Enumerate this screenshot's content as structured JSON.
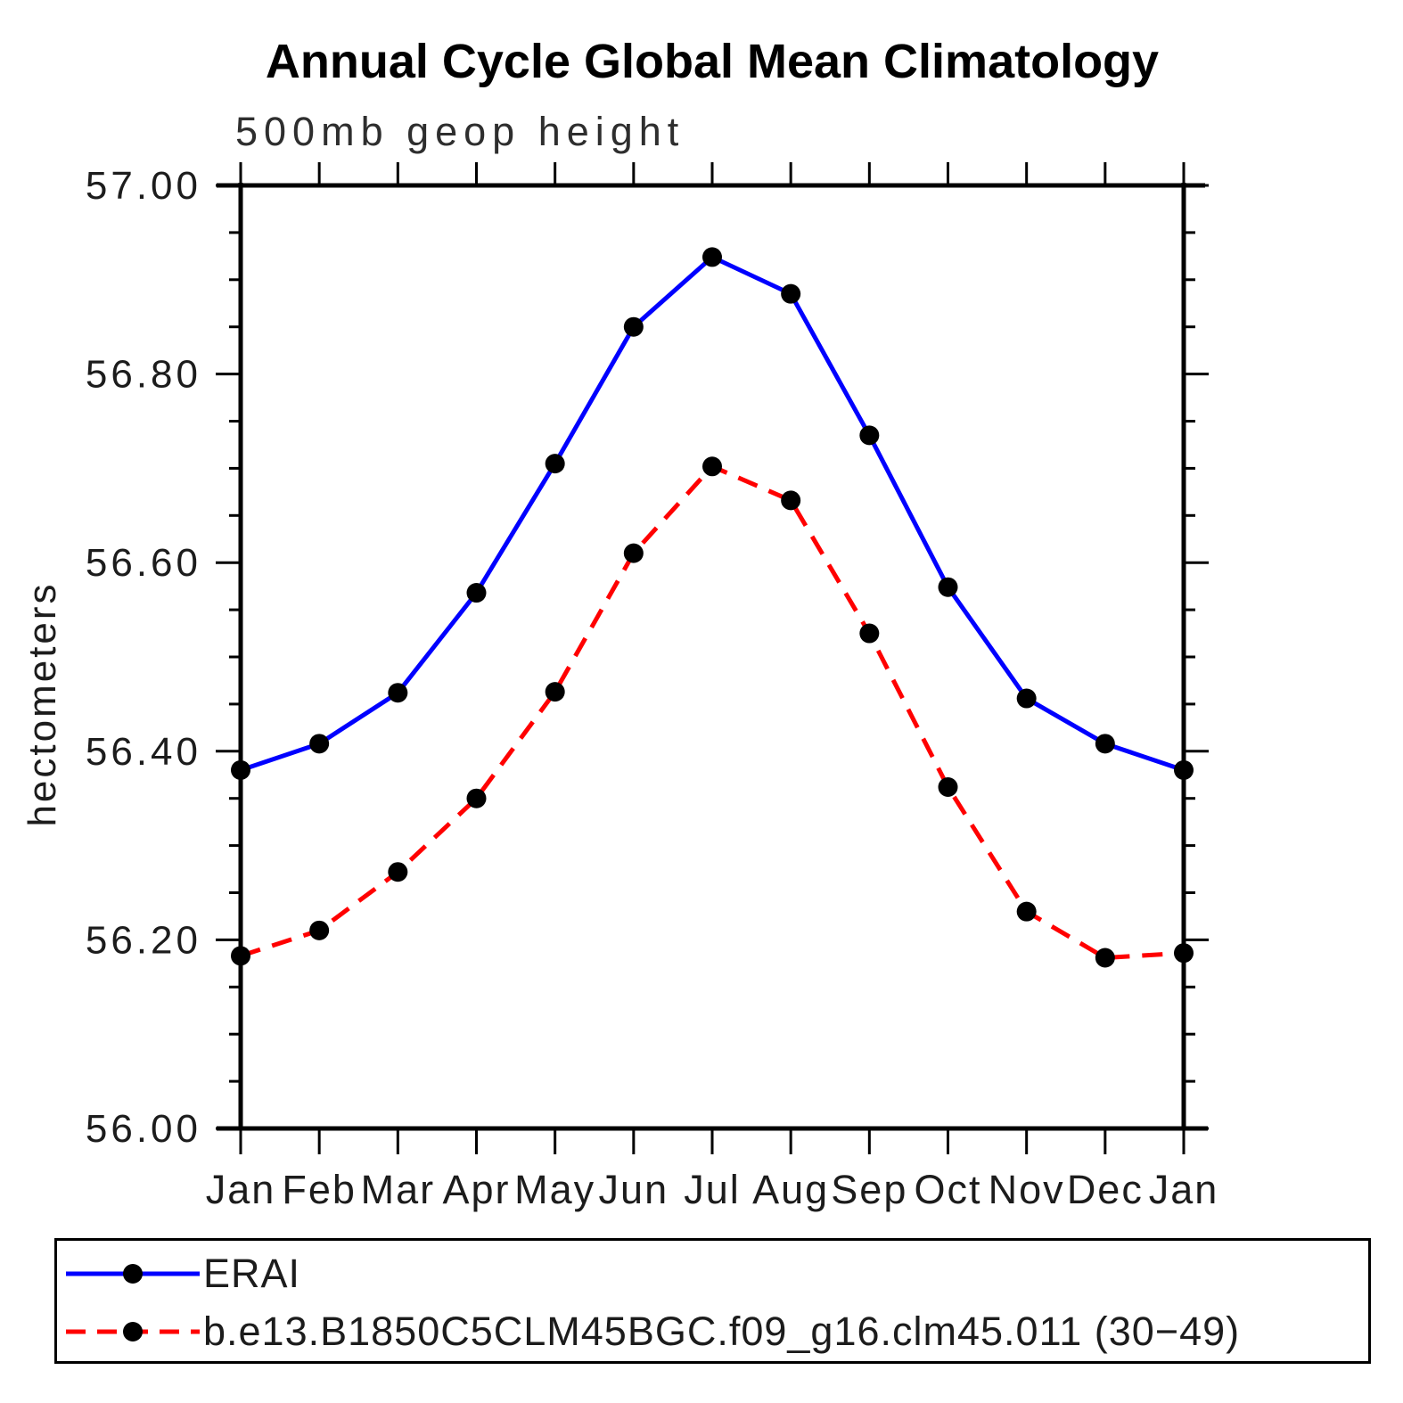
{
  "title": "Annual Cycle Global Mean Climatology",
  "subtitle": "500mb geop height",
  "chart_data": {
    "type": "line",
    "title": "Annual Cycle Global Mean Climatology",
    "subtitle": "500mb geop height",
    "ylabel": "hectometers",
    "x_categories": [
      "Jan",
      "Feb",
      "Mar",
      "Apr",
      "May",
      "Jun",
      "Jul",
      "Aug",
      "Sep",
      "Oct",
      "Nov",
      "Dec",
      "Jan"
    ],
    "ylim": [
      56.0,
      57.0
    ],
    "ytick_labels": [
      "56.00",
      "56.20",
      "56.40",
      "56.60",
      "56.80",
      "57.00"
    ],
    "ytick_major_step": 0.2,
    "ytick_minor_step": 0.05,
    "grid": false,
    "legend_position": "bottom-box",
    "axis_color": "#000000",
    "marker_color": "#000000",
    "series": [
      {
        "name": "ERAI",
        "color": "#0000ff",
        "line_style": "solid",
        "marker": "circle",
        "values": [
          56.38,
          56.408,
          56.462,
          56.568,
          56.705,
          56.85,
          56.924,
          56.885,
          56.735,
          56.574,
          56.456,
          56.408,
          56.38
        ]
      },
      {
        "name": "b.e13.B1850C5CLM45BGC.f09_g16.clm45.011 (30−49)",
        "color": "#ff0000",
        "line_style": "dashed",
        "marker": "circle",
        "values": [
          56.183,
          56.21,
          56.272,
          56.35,
          56.463,
          56.61,
          56.702,
          56.666,
          56.525,
          56.362,
          56.23,
          56.181,
          56.186
        ]
      }
    ]
  }
}
